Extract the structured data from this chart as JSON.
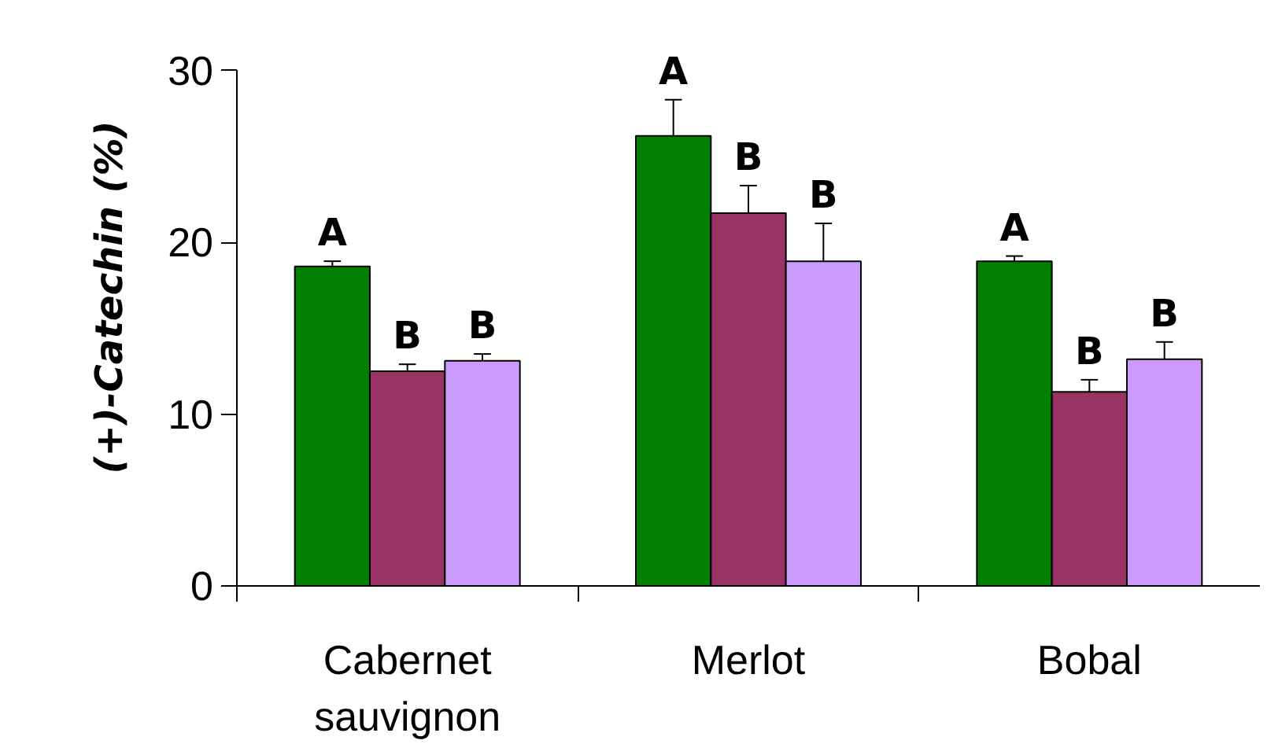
{
  "chart_data": {
    "type": "bar",
    "ylabel": "(+)-Catechin (%)",
    "categories": [
      "Cabernet\nsauvignon",
      "Merlot",
      "Bobal"
    ],
    "series": [
      {
        "color": "#007f00",
        "values": [
          18.6,
          26.2,
          18.9
        ],
        "errors": [
          [
            18.6,
            18.9
          ],
          [
            26.2,
            28.3
          ],
          [
            18.9,
            19.2
          ]
        ]
      },
      {
        "color": "#993366",
        "values": [
          12.5,
          21.7,
          11.3
        ],
        "errors": [
          [
            12.5,
            12.9
          ],
          [
            21.7,
            23.3
          ],
          [
            11.3,
            12.0
          ]
        ]
      },
      {
        "color": "#cc99ff",
        "values": [
          13.1,
          18.9,
          13.2
        ],
        "errors": [
          [
            13.1,
            13.5
          ],
          [
            18.9,
            21.1
          ],
          [
            13.2,
            14.2
          ]
        ]
      }
    ],
    "annotations": [
      "A",
      "B",
      "B",
      "A",
      "B",
      "B",
      "A",
      "B",
      "B"
    ],
    "ylim": [
      0,
      30
    ],
    "yticks": [
      0,
      10,
      20,
      30
    ],
    "grid": false
  }
}
